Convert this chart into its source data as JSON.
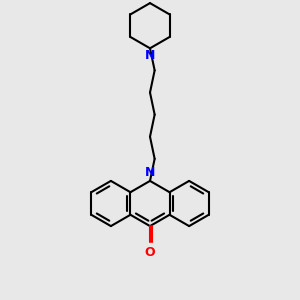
{
  "bg_color": "#e8e8e8",
  "bond_color": "#000000",
  "n_color": "#0000ff",
  "o_color": "#ff0000",
  "bond_width": 1.5,
  "fig_size": [
    3.0,
    3.0
  ],
  "dpi": 100,
  "BL": 0.38,
  "xlim": [
    -1.6,
    1.6
  ],
  "ylim": [
    -3.2,
    1.8
  ]
}
